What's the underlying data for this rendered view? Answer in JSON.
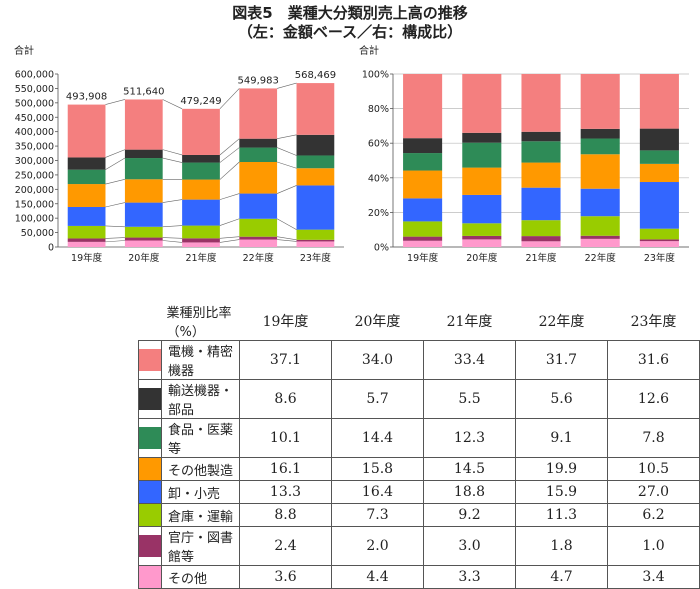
{
  "title": "図表5　業種大分類別売上高の推移",
  "subtitle": "（左：金額ベース／右：構成比）",
  "chart_data": [
    {
      "type": "bar",
      "stacked": true,
      "ylabel": "合計",
      "ylim": [
        0,
        600000
      ],
      "yticks": [
        "0",
        "50,000",
        "100,000",
        "150,000",
        "200,000",
        "250,000",
        "300,000",
        "350,000",
        "400,000",
        "450,000",
        "500,000",
        "550,000",
        "600,000"
      ],
      "categories": [
        "19年度",
        "20年度",
        "21年度",
        "22年度",
        "23年度"
      ],
      "totals": [
        493908,
        511640,
        479249,
        549983,
        568469
      ],
      "total_labels": [
        "493,908",
        "511,640",
        "479,249",
        "549,983",
        "568,469"
      ],
      "series_ref": "table.rows"
    },
    {
      "type": "bar",
      "stacked": true,
      "ylabel": "合計",
      "ylim": [
        0,
        100
      ],
      "yticks": [
        "0%",
        "20%",
        "40%",
        "60%",
        "80%",
        "100%"
      ],
      "categories": [
        "19年度",
        "20年度",
        "21年度",
        "22年度",
        "23年度"
      ],
      "series_ref": "table.rows"
    }
  ],
  "table": {
    "header": "業種別比率（%）",
    "years": [
      "19年度",
      "20年度",
      "21年度",
      "22年度",
      "23年度"
    ],
    "rows": [
      {
        "name": "電機・精密機器",
        "color": "#f47f7f",
        "values": [
          "37.1",
          "34.0",
          "33.4",
          "31.7",
          "31.6"
        ]
      },
      {
        "name": "輸送機器・部品",
        "color": "#333333",
        "values": [
          "8.6",
          "5.7",
          "5.5",
          "5.6",
          "12.6"
        ]
      },
      {
        "name": "食品・医薬等",
        "color": "#2e8b57",
        "values": [
          "10.1",
          "14.4",
          "12.3",
          "9.1",
          "7.8"
        ]
      },
      {
        "name": "その他製造",
        "color": "#ff9900",
        "values": [
          "16.1",
          "15.8",
          "14.5",
          "19.9",
          "10.5"
        ]
      },
      {
        "name": "卸・小売",
        "color": "#3366ff",
        "values": [
          "13.3",
          "16.4",
          "18.8",
          "15.9",
          "27.0"
        ]
      },
      {
        "name": "倉庫・運輸",
        "color": "#99cc00",
        "values": [
          "8.8",
          "7.3",
          "9.2",
          "11.3",
          "6.2"
        ]
      },
      {
        "name": "官庁・図書館等",
        "color": "#993366",
        "values": [
          "2.4",
          "2.0",
          "3.0",
          "1.8",
          "1.0"
        ]
      },
      {
        "name": "その他",
        "color": "#ff99cc",
        "values": [
          "3.6",
          "4.4",
          "3.3",
          "4.7",
          "3.4"
        ]
      }
    ]
  }
}
